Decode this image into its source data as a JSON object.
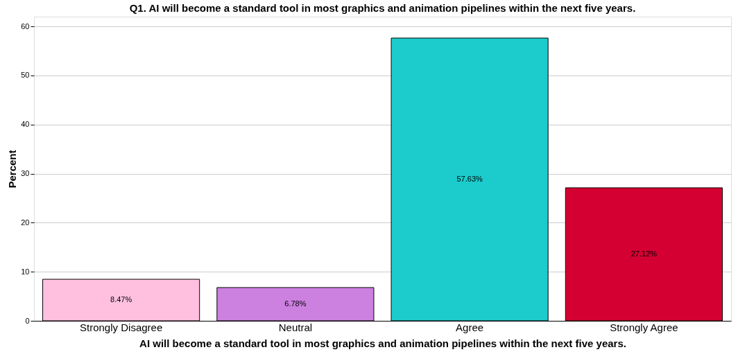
{
  "chart_data": {
    "type": "bar",
    "title": "Q1. AI will become a standard tool in most graphics and animation pipelines within the next five years.",
    "xlabel": "AI will become a standard tool in most graphics and animation pipelines within the next five years.",
    "ylabel": "Percent",
    "categories": [
      "Strongly Disagree",
      "Neutral",
      "Agree",
      "Strongly Agree"
    ],
    "values": [
      8.47,
      6.78,
      57.63,
      27.12
    ],
    "colors": [
      "#ffc0e0",
      "#cc80e0",
      "#1ccccc",
      "#d50032"
    ],
    "value_labels": [
      "8.47%",
      "6.78%",
      "57.63%",
      "27.12%"
    ],
    "ylim": [
      0,
      62
    ],
    "yticks": [
      0,
      10,
      20,
      30,
      40,
      50,
      60
    ],
    "grid": "y",
    "legend": false
  }
}
